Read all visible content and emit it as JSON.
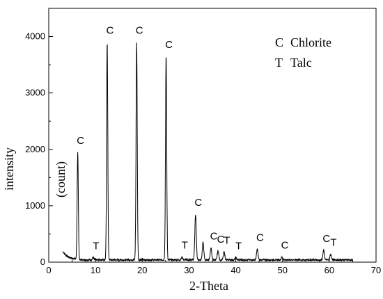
{
  "chart_data": {
    "type": "line",
    "xlabel": "2-Theta",
    "ylabel": "intensity",
    "ylabel_unit": "(count)",
    "xlim": [
      0,
      70
    ],
    "ylim": [
      0,
      4500
    ],
    "x_ticks": [
      0,
      10,
      20,
      30,
      40,
      50,
      60,
      70
    ],
    "y_ticks": [
      0,
      1000,
      2000,
      3000,
      4000
    ],
    "grid": false,
    "legend": [
      {
        "symbol": "C",
        "name": "Chlorite"
      },
      {
        "symbol": "T",
        "name": "Talc"
      }
    ],
    "legend_position": "top-right",
    "peaks": [
      {
        "x": 6.2,
        "y": 1950,
        "label": "C"
      },
      {
        "x": 12.5,
        "y": 3900,
        "label": "C"
      },
      {
        "x": 18.8,
        "y": 3900,
        "label": "C"
      },
      {
        "x": 25.1,
        "y": 3650,
        "label": "C"
      },
      {
        "x": 31.4,
        "y": 850,
        "label": "C"
      },
      {
        "x": 33.0,
        "y": 350,
        "label": ""
      },
      {
        "x": 34.7,
        "y": 250,
        "label": "C"
      },
      {
        "x": 36.2,
        "y": 200,
        "label": "C"
      },
      {
        "x": 37.5,
        "y": 180,
        "label": "T"
      },
      {
        "x": 40.0,
        "y": 80,
        "label": "T"
      },
      {
        "x": 44.6,
        "y": 230,
        "label": "C"
      },
      {
        "x": 49.9,
        "y": 90,
        "label": "C"
      },
      {
        "x": 58.8,
        "y": 210,
        "label": "C"
      },
      {
        "x": 60.3,
        "y": 140,
        "label": "T"
      },
      {
        "x": 9.5,
        "y": 80,
        "label": "T"
      },
      {
        "x": 28.5,
        "y": 90,
        "label": "T"
      }
    ],
    "x_start": 3,
    "x_end": 65,
    "series": [
      {
        "color": "#000000"
      }
    ]
  }
}
